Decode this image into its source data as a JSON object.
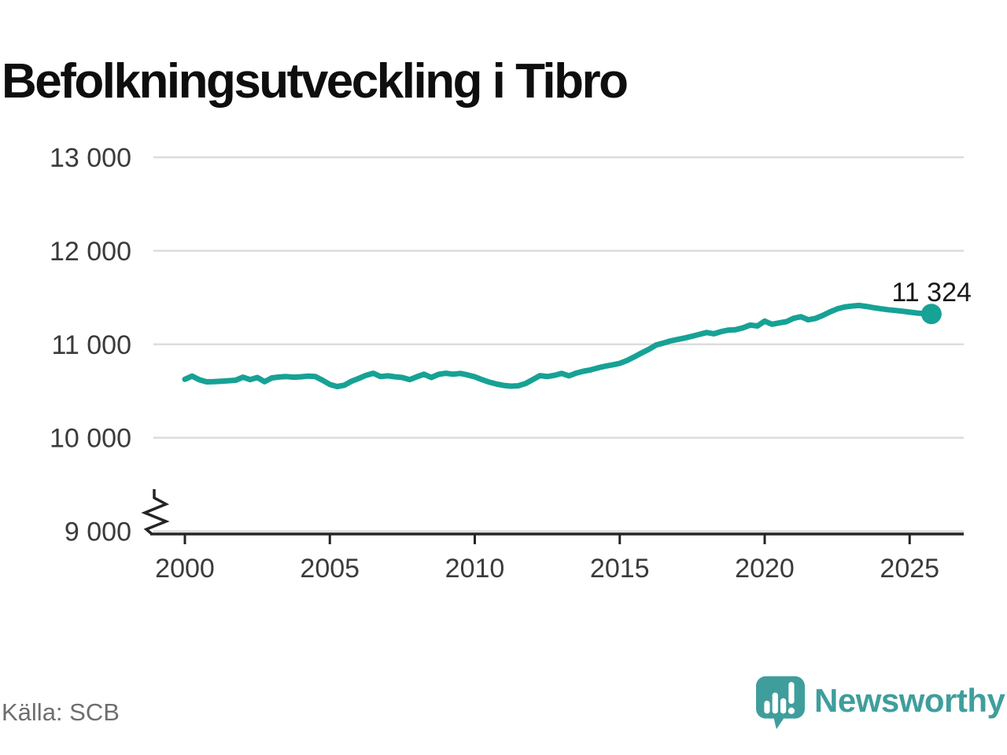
{
  "title": "Befolkningsutveckling i Tibro",
  "source": "Källa: SCB",
  "branding": {
    "name": "Newsworthy",
    "icon": "newsworthy-logo-icon",
    "color": "#3F9E9C"
  },
  "colors": {
    "line": "#16A295",
    "grid": "#DCDCDC",
    "axis": "#252525",
    "tick_label": "#3B3B3B",
    "endpoint_label": "#1A1A1A",
    "source_text": "#6E6E6E",
    "background": "#FFFFFF"
  },
  "chart_data": {
    "type": "line",
    "title": "Befolkningsutveckling i Tibro",
    "xlabel": "",
    "ylabel": "",
    "grid": "horizontal",
    "legend": "none",
    "xlim": [
      1998.9,
      2026.9
    ],
    "ylim": [
      9000,
      13000
    ],
    "axis_break_at_bottom": true,
    "x_ticks": [
      2000,
      2005,
      2010,
      2015,
      2020,
      2025
    ],
    "x_tick_labels": [
      "2000",
      "2005",
      "2010",
      "2015",
      "2020",
      "2025"
    ],
    "y_ticks": [
      9000,
      10000,
      11000,
      12000,
      13000
    ],
    "y_tick_labels": [
      "9 000",
      "10 000",
      "11 000",
      "12 000",
      "13 000"
    ],
    "endpoint_label": "11 324",
    "endpoint_value": 11324,
    "series": [
      {
        "points": [
          [
            2000.0,
            10625
          ],
          [
            2000.25,
            10660
          ],
          [
            2000.5,
            10620
          ],
          [
            2000.75,
            10598
          ],
          [
            2001.0,
            10600
          ],
          [
            2001.25,
            10605
          ],
          [
            2001.5,
            10610
          ],
          [
            2001.75,
            10615
          ],
          [
            2002.0,
            10648
          ],
          [
            2002.25,
            10622
          ],
          [
            2002.5,
            10645
          ],
          [
            2002.75,
            10600
          ],
          [
            2003.0,
            10640
          ],
          [
            2003.25,
            10650
          ],
          [
            2003.5,
            10655
          ],
          [
            2003.75,
            10648
          ],
          [
            2004.0,
            10652
          ],
          [
            2004.25,
            10660
          ],
          [
            2004.5,
            10655
          ],
          [
            2004.75,
            10615
          ],
          [
            2005.0,
            10570
          ],
          [
            2005.25,
            10548
          ],
          [
            2005.5,
            10562
          ],
          [
            2005.75,
            10605
          ],
          [
            2006.0,
            10635
          ],
          [
            2006.25,
            10668
          ],
          [
            2006.5,
            10690
          ],
          [
            2006.75,
            10655
          ],
          [
            2007.0,
            10662
          ],
          [
            2007.25,
            10652
          ],
          [
            2007.5,
            10645
          ],
          [
            2007.75,
            10622
          ],
          [
            2008.0,
            10652
          ],
          [
            2008.25,
            10680
          ],
          [
            2008.5,
            10645
          ],
          [
            2008.75,
            10678
          ],
          [
            2009.0,
            10690
          ],
          [
            2009.25,
            10680
          ],
          [
            2009.5,
            10688
          ],
          [
            2009.75,
            10672
          ],
          [
            2010.0,
            10652
          ],
          [
            2010.25,
            10622
          ],
          [
            2010.5,
            10595
          ],
          [
            2010.75,
            10575
          ],
          [
            2011.0,
            10560
          ],
          [
            2011.25,
            10552
          ],
          [
            2011.5,
            10556
          ],
          [
            2011.75,
            10580
          ],
          [
            2012.0,
            10622
          ],
          [
            2012.25,
            10665
          ],
          [
            2012.5,
            10655
          ],
          [
            2012.75,
            10668
          ],
          [
            2013.0,
            10688
          ],
          [
            2013.25,
            10662
          ],
          [
            2013.5,
            10692
          ],
          [
            2013.75,
            10712
          ],
          [
            2014.0,
            10726
          ],
          [
            2014.25,
            10748
          ],
          [
            2014.5,
            10766
          ],
          [
            2014.75,
            10780
          ],
          [
            2015.0,
            10796
          ],
          [
            2015.25,
            10826
          ],
          [
            2015.5,
            10866
          ],
          [
            2015.75,
            10906
          ],
          [
            2016.0,
            10946
          ],
          [
            2016.25,
            10992
          ],
          [
            2016.5,
            11012
          ],
          [
            2016.75,
            11036
          ],
          [
            2017.0,
            11052
          ],
          [
            2017.25,
            11068
          ],
          [
            2017.5,
            11086
          ],
          [
            2017.75,
            11106
          ],
          [
            2018.0,
            11126
          ],
          [
            2018.25,
            11112
          ],
          [
            2018.5,
            11136
          ],
          [
            2018.75,
            11152
          ],
          [
            2019.0,
            11156
          ],
          [
            2019.25,
            11176
          ],
          [
            2019.5,
            11206
          ],
          [
            2019.75,
            11196
          ],
          [
            2020.0,
            11248
          ],
          [
            2020.25,
            11214
          ],
          [
            2020.5,
            11228
          ],
          [
            2020.75,
            11242
          ],
          [
            2021.0,
            11278
          ],
          [
            2021.25,
            11295
          ],
          [
            2021.5,
            11262
          ],
          [
            2021.75,
            11276
          ],
          [
            2022.0,
            11308
          ],
          [
            2022.25,
            11346
          ],
          [
            2022.5,
            11378
          ],
          [
            2022.75,
            11398
          ],
          [
            2023.0,
            11408
          ],
          [
            2023.25,
            11415
          ],
          [
            2023.5,
            11405
          ],
          [
            2023.75,
            11392
          ],
          [
            2024.0,
            11380
          ],
          [
            2024.25,
            11370
          ],
          [
            2024.5,
            11362
          ],
          [
            2024.75,
            11354
          ],
          [
            2025.0,
            11344
          ],
          [
            2025.25,
            11334
          ],
          [
            2025.5,
            11328
          ],
          [
            2025.75,
            11324
          ]
        ]
      }
    ]
  }
}
